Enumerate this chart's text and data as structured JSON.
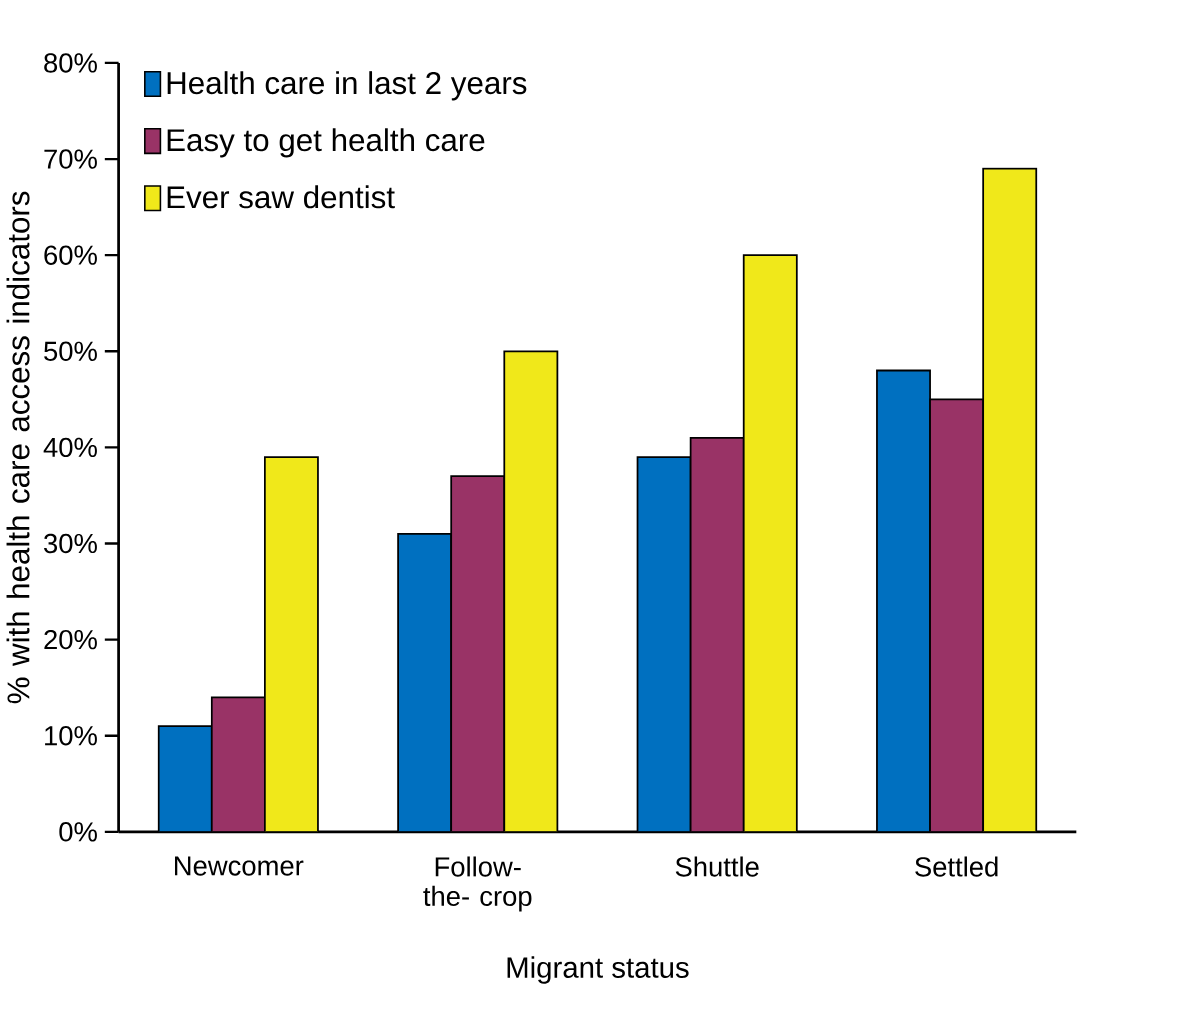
{
  "chart_data": {
    "type": "bar",
    "xlabel": "Migrant status",
    "ylabel": "% with health care access indicators",
    "categories": [
      "Newcomer",
      "Follow-the- crop",
      "Shuttle",
      "Settled"
    ],
    "series": [
      {
        "name": "Health care in last 2 years",
        "color": "#0070c0",
        "values": [
          11,
          31,
          39,
          48
        ]
      },
      {
        "name": "Easy to get health care",
        "color": "#993366",
        "values": [
          14,
          37,
          41,
          45
        ]
      },
      {
        "name": "Ever saw dentist",
        "color": "#f0e81a",
        "values": [
          39,
          50,
          60,
          69
        ]
      }
    ],
    "ylim": [
      0,
      80
    ],
    "yticks": [
      {
        "value": 0,
        "label": "0%"
      },
      {
        "value": 10,
        "label": "10%"
      },
      {
        "value": 20,
        "label": "20%"
      },
      {
        "value": 30,
        "label": "30%"
      },
      {
        "value": 40,
        "label": "40%"
      },
      {
        "value": 50,
        "label": "50%"
      },
      {
        "value": 60,
        "label": "60%"
      },
      {
        "value": 70,
        "label": "70%"
      },
      {
        "value": 80,
        "label": "80%"
      }
    ],
    "grid": false,
    "legend": "top left"
  }
}
